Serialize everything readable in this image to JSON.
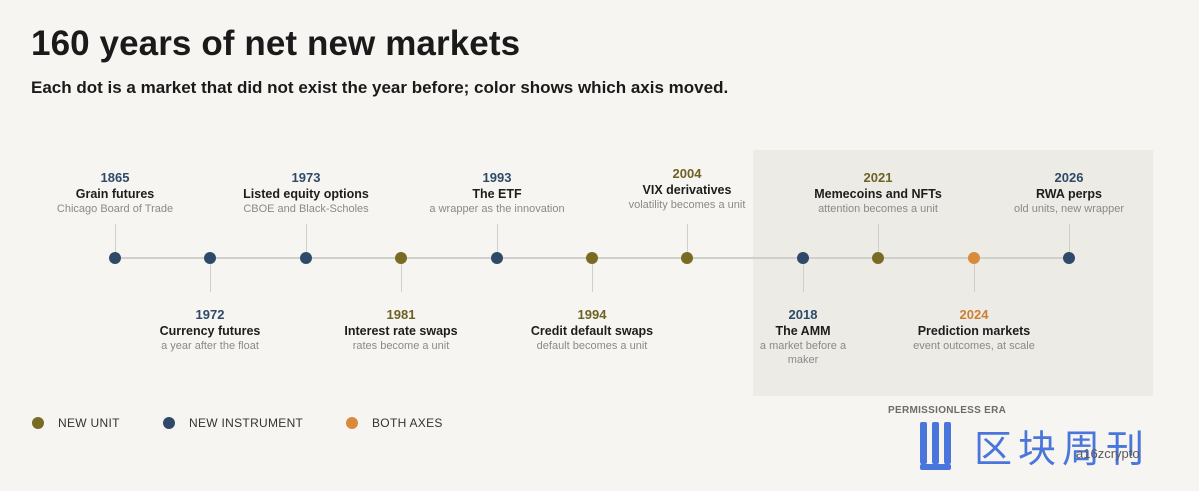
{
  "title": "160 years of net new markets",
  "subtitle": "Each dot is a market that did not exist the year before; color shows which axis moved.",
  "era_label": "PERMISSIONLESS ERA",
  "colors": {
    "new_unit": "#7a6b24",
    "new_instrument": "#2f4a68",
    "both_axes": "#d98a3a"
  },
  "events": [
    {
      "year": "1865",
      "name": "Grain futures",
      "desc": "Chicago Board of Trade",
      "type": "new_instrument",
      "pos": "above"
    },
    {
      "year": "1972",
      "name": "Currency futures",
      "desc": "a year after the float",
      "type": "new_instrument",
      "pos": "below"
    },
    {
      "year": "1973",
      "name": "Listed equity options",
      "desc": "CBOE and Black-Scholes",
      "type": "new_instrument",
      "pos": "above"
    },
    {
      "year": "1981",
      "name": "Interest rate swaps",
      "desc": "rates become a unit",
      "type": "new_unit",
      "pos": "below"
    },
    {
      "year": "1993",
      "name": "The ETF",
      "desc": "a wrapper as the innovation",
      "type": "new_instrument",
      "pos": "above"
    },
    {
      "year": "1994",
      "name": "Credit default swaps",
      "desc": "default becomes a unit",
      "type": "new_unit",
      "pos": "below"
    },
    {
      "year": "2004",
      "name": "VIX derivatives",
      "desc": "volatility becomes a unit",
      "type": "new_unit",
      "pos": "above"
    },
    {
      "year": "2018",
      "name": "The AMM",
      "desc": "a market before a maker",
      "type": "new_instrument",
      "pos": "below"
    },
    {
      "year": "2021",
      "name": "Memecoins and NFTs",
      "desc": "attention becomes a unit",
      "type": "new_unit",
      "pos": "above"
    },
    {
      "year": "2024",
      "name": "Prediction markets",
      "desc": "event outcomes, at scale",
      "type": "both_axes",
      "pos": "below"
    },
    {
      "year": "2026",
      "name": "RWA perps",
      "desc": "old units, new wrapper",
      "type": "new_instrument",
      "pos": "above"
    }
  ],
  "legend": [
    {
      "label": "NEW UNIT",
      "type": "new_unit"
    },
    {
      "label": "NEW INSTRUMENT",
      "type": "new_instrument"
    },
    {
      "label": "BOTH AXES",
      "type": "both_axes"
    }
  ],
  "watermark": {
    "latin": "a16zcrypto",
    "cjk": "区块周刊"
  }
}
